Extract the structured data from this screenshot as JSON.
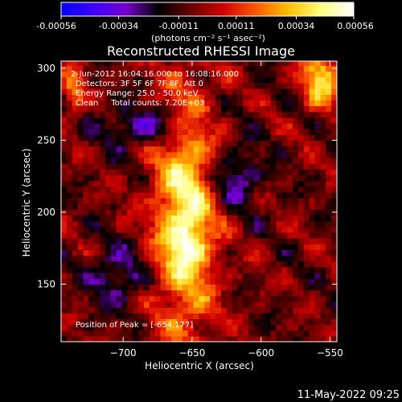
{
  "chart_data": [
    {
      "type": "colorbar",
      "ticks": [
        "-0.00056",
        "-0.00034",
        "-0.00011",
        "0.00011",
        "0.00034",
        "0.00056"
      ],
      "tick_values": [
        -0.00056,
        -0.00034,
        -0.00011,
        0.00011,
        0.00034,
        0.00056
      ],
      "range": [
        -0.00056,
        0.00056
      ],
      "unit_label": "(photons cm⁻² s⁻¹ asec⁻²)",
      "colormap": [
        "#0000ff",
        "#3d00ff",
        "#7700cc",
        "#000000",
        "#6a0000",
        "#d10000",
        "#ff5a00",
        "#ffc000",
        "#ffff80",
        "#ffffff"
      ]
    },
    {
      "type": "heatmap",
      "title": "Reconstructed RHESSI Image",
      "xlabel": "Heliocentric X (arcsec)",
      "ylabel": "Heliocentric Y (arcsec)",
      "xlim": [
        -745,
        -545
      ],
      "ylim": [
        110,
        305
      ],
      "xticks": [
        -700,
        -650,
        -600,
        -550
      ],
      "xtick_labels": [
        "−700",
        "−650",
        "−600",
        "−550"
      ],
      "yticks": [
        150,
        200,
        250,
        300
      ],
      "ytick_labels": [
        "150",
        "200",
        "250",
        "300"
      ],
      "annotations": [
        "2-Jun-2012 16:04:16.000 to 16:08:16.000",
        "Detectors: 3F 5F 6F 7F 8F, Att 0",
        "Energy Range: 25.0 - 50.0 keV",
        "Clean     Total counts: 7.20E+03"
      ],
      "peak_label": "Position of Peak = [-654,177]",
      "peak": [
        -654,
        177
      ],
      "source_features": [
        {
          "x": -655,
          "y": 200,
          "sx": 16,
          "sy": 60,
          "amp": 1.0
        },
        {
          "x": -654,
          "y": 177,
          "sx": 8,
          "sy": 10,
          "amp": 0.35
        },
        {
          "x": -557,
          "y": 292,
          "sx": 10,
          "sy": 14,
          "amp": 0.85
        },
        {
          "x": -736,
          "y": 285,
          "sx": 6,
          "sy": 12,
          "amp": 0.55
        },
        {
          "x": -680,
          "y": 260,
          "sx": 22,
          "sy": 10,
          "amp": -0.55
        },
        {
          "x": -620,
          "y": 225,
          "sx": 14,
          "sy": 14,
          "amp": -0.5
        },
        {
          "x": -705,
          "y": 155,
          "sx": 14,
          "sy": 14,
          "amp": -0.45
        }
      ]
    }
  ],
  "timestamp": "11-May-2022 09:25"
}
